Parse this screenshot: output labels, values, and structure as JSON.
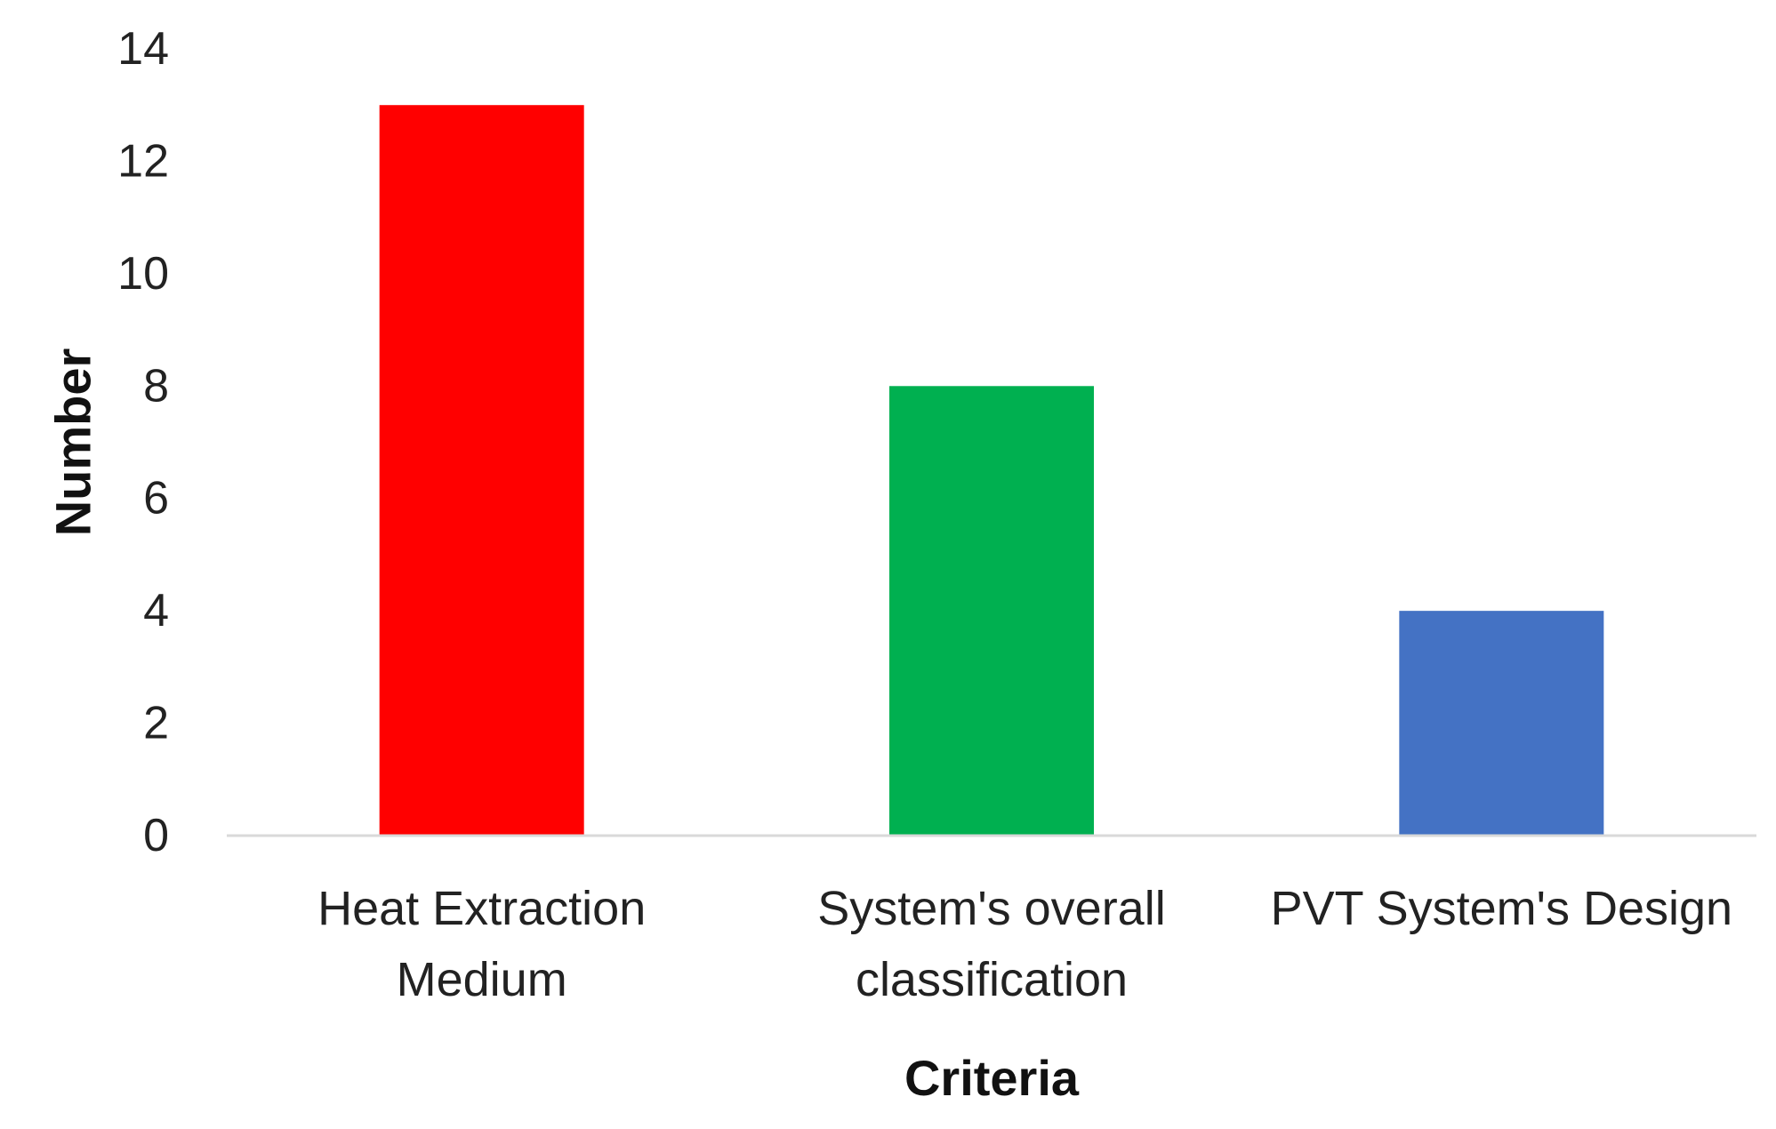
{
  "chart_data": {
    "type": "bar",
    "categories": [
      "Heat Extraction Medium",
      "System's overall classification",
      "PVT System's Design"
    ],
    "category_lines": [
      [
        "Heat Extraction",
        "Medium"
      ],
      [
        "System's overall",
        "classification"
      ],
      [
        "PVT System's Design"
      ]
    ],
    "values": [
      13,
      8,
      4
    ],
    "colors": [
      "#FF0000",
      "#00B050",
      "#4472C4"
    ],
    "title": "",
    "xlabel": "Criteria",
    "ylabel": "Number",
    "ylim": [
      0,
      14
    ],
    "yticks": [
      0,
      2,
      4,
      6,
      8,
      10,
      12,
      14
    ],
    "grid": false,
    "legend": "none",
    "axis_color": "#D9D9D9"
  }
}
